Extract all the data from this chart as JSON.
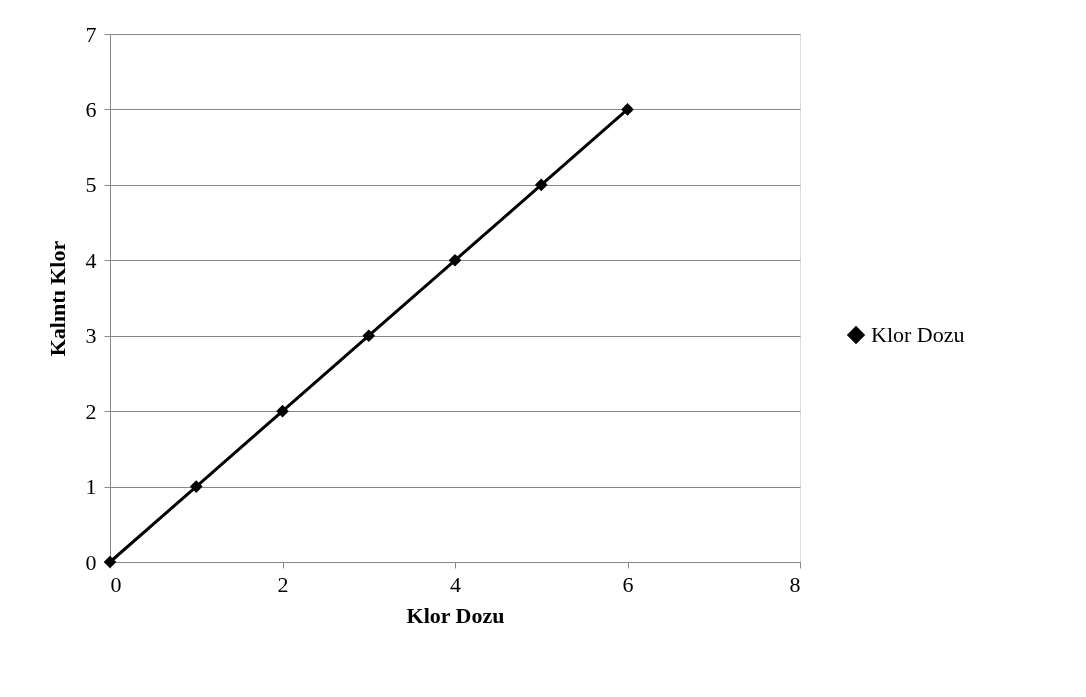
{
  "chart_data": {
    "type": "line",
    "xlabel": "Klor Dozu",
    "ylabel": "Kalıntı Klor",
    "x": [
      0,
      1,
      2,
      3,
      4,
      5,
      6
    ],
    "series": [
      {
        "name": "Klor Dozu",
        "color": "#000000",
        "values": [
          0,
          1,
          2,
          3,
          4,
          5,
          6
        ]
      }
    ],
    "xlim": [
      0,
      8
    ],
    "xticks": [
      0,
      2,
      4,
      6,
      8
    ],
    "ylim": [
      0,
      7
    ],
    "yticks": [
      0,
      1,
      2,
      3,
      4,
      5,
      6,
      7
    ],
    "grid": "y",
    "legend": "right",
    "marker": "diamond",
    "line_style": "solid"
  }
}
